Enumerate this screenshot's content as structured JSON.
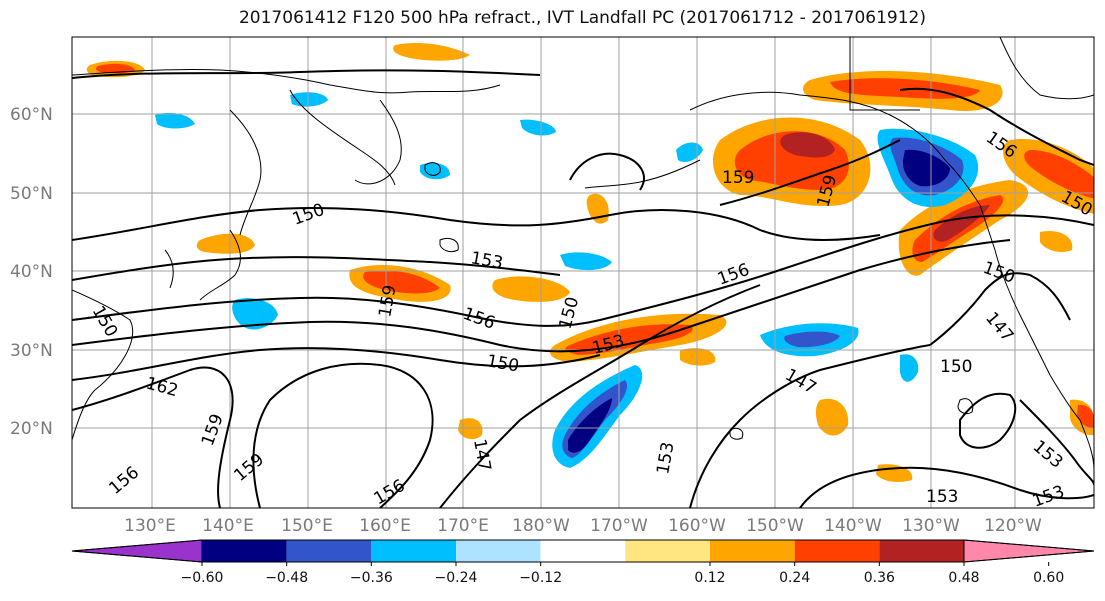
{
  "title": "2017061412 F120 500 hPa refract., IVT Landfall PC (2017061712 - 2017061912)",
  "lat_labels": [
    "20°N",
    "30°N",
    "40°N",
    "50°N",
    "60°N"
  ],
  "lon_labels": [
    "130°E",
    "140°E",
    "150°E",
    "160°E",
    "170°E",
    "180°W",
    "170°W",
    "160°W",
    "150°W",
    "140°W",
    "130°W",
    "120°W"
  ],
  "contour_labels": [
    {
      "text": "159",
      "rot": 0
    },
    {
      "text": "159",
      "rot": -75
    },
    {
      "text": "156",
      "rot": 35
    },
    {
      "text": "150",
      "rot": -20
    },
    {
      "text": "153",
      "rot": 10
    },
    {
      "text": "156",
      "rot": -20
    },
    {
      "text": "150",
      "rot": 20
    },
    {
      "text": "150",
      "rot": 60
    },
    {
      "text": "159",
      "rot": -80
    },
    {
      "text": "156",
      "rot": 20
    },
    {
      "text": "150",
      "rot": -75
    },
    {
      "text": "153",
      "rot": -15
    },
    {
      "text": "150",
      "rot": 10
    },
    {
      "text": "147",
      "rot": 30
    },
    {
      "text": "150",
      "rot": 0
    },
    {
      "text": "147",
      "rot": 50
    },
    {
      "text": "162",
      "rot": 15
    },
    {
      "text": "159",
      "rot": -70
    },
    {
      "text": "159",
      "rot": -40
    },
    {
      "text": "156",
      "rot": -40
    },
    {
      "text": "156",
      "rot": -30
    },
    {
      "text": "147",
      "rot": 80
    },
    {
      "text": "153",
      "rot": -80
    },
    {
      "text": "153",
      "rot": 40
    },
    {
      "text": "153",
      "rot": 0
    },
    {
      "text": "153",
      "rot": -20
    },
    {
      "text": "150",
      "rot": 30
    }
  ],
  "colorbar": {
    "colors": [
      "#9933cc",
      "#000080",
      "#3355cc",
      "#00bfff",
      "#aee3ff",
      "#ffffff",
      "#ffe680",
      "#ffa500",
      "#ff4000",
      "#b22222",
      "#ff88aa"
    ],
    "ticks": [
      "−0.60",
      "−0.48",
      "−0.36",
      "−0.24",
      "−0.12",
      "0.12",
      "0.24",
      "0.36",
      "0.48",
      "0.60"
    ]
  },
  "colors": {
    "grid": "#a0a0a0",
    "contour": "#000000",
    "coast": "#000000",
    "axis_label": "#7a7a7a"
  }
}
